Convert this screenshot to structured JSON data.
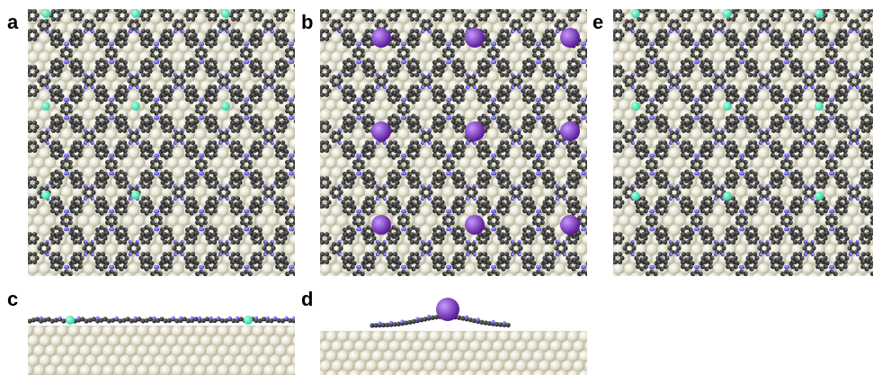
{
  "panels": [
    {
      "id": "a",
      "label": "a",
      "view": "top",
      "ion": "green"
    },
    {
      "id": "b",
      "label": "b",
      "view": "top",
      "ion": "purple"
    },
    {
      "id": "e",
      "label": "e",
      "view": "top",
      "ion": "green"
    },
    {
      "id": "c",
      "label": "c",
      "view": "side",
      "ion": "green"
    },
    {
      "id": "d",
      "label": "d",
      "view": "side",
      "ion": "purple"
    }
  ],
  "colors": {
    "substrate": "#e6e3d2",
    "substrate_shade": "#b9b6a3",
    "carbon": "#1a1a1a",
    "nitrogen": "#3b35d6",
    "green_ion": "#2cd3a0",
    "purple_ion": "#5b1a9a"
  }
}
